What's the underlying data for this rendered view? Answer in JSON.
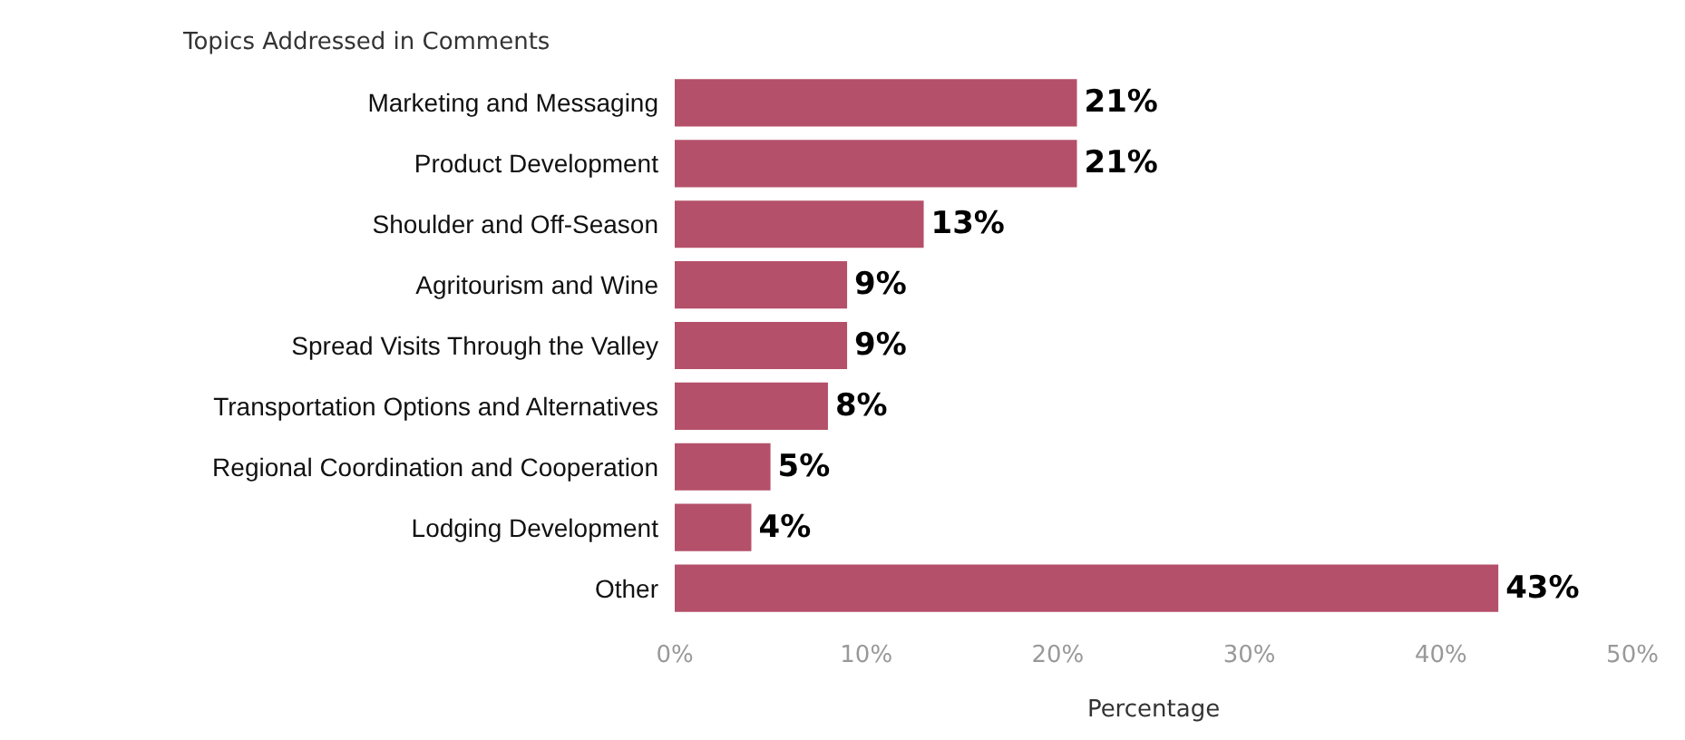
{
  "chart_data": {
    "type": "bar",
    "orientation": "horizontal",
    "ylabel": "Topics Addressed in Comments",
    "xlabel": "Percentage",
    "categories": [
      "Marketing and Messaging",
      "Product Development",
      "Shoulder and Off-Season",
      "Agritourism and Wine",
      "Spread Visits Through the Valley",
      "Transportation Options and Alternatives",
      "Regional Coordination and Cooperation",
      "Lodging Development",
      "Other"
    ],
    "values": [
      21,
      21,
      13,
      9,
      9,
      8,
      5,
      4,
      43
    ],
    "value_labels": [
      "21%",
      "21%",
      "13%",
      "9%",
      "9%",
      "8%",
      "5%",
      "4%",
      "43%"
    ],
    "color": "#b5506a",
    "xlim": [
      0,
      50
    ],
    "xticks": [
      {
        "value": 0,
        "label": "0%"
      },
      {
        "value": 10,
        "label": "10%"
      },
      {
        "value": 20,
        "label": "20%"
      },
      {
        "value": 30,
        "label": "30%"
      },
      {
        "value": 40,
        "label": "40%"
      },
      {
        "value": 50,
        "label": "50%"
      }
    ],
    "grid": false
  }
}
